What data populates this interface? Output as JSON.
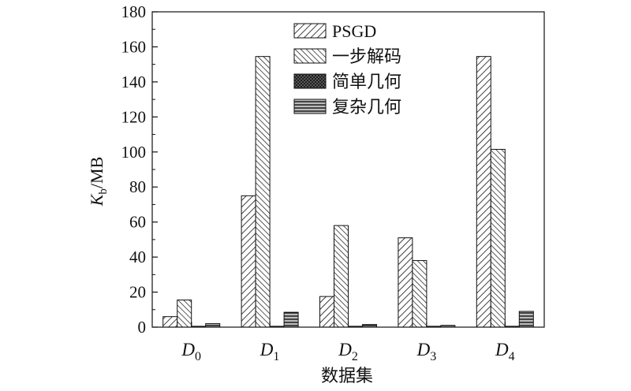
{
  "chart_data": {
    "type": "bar",
    "categories": [
      "D0",
      "D1",
      "D2",
      "D3",
      "D4"
    ],
    "category_labels": [
      {
        "main": "D",
        "sub": "0"
      },
      {
        "main": "D",
        "sub": "1"
      },
      {
        "main": "D",
        "sub": "2"
      },
      {
        "main": "D",
        "sub": "3"
      },
      {
        "main": "D",
        "sub": "4"
      }
    ],
    "series": [
      {
        "name": "PSGD",
        "values": [
          6,
          75,
          17.5,
          51,
          154.5
        ],
        "pattern": "diag-right"
      },
      {
        "name": "一步解码",
        "values": [
          15.5,
          154.5,
          58,
          38,
          101.5
        ],
        "pattern": "diag-left"
      },
      {
        "name": "简单几何",
        "values": [
          0.5,
          0.5,
          0.5,
          0.5,
          0.5
        ],
        "pattern": "crosshatch"
      },
      {
        "name": "复杂几何",
        "values": [
          2,
          8.5,
          1.5,
          1,
          9
        ],
        "pattern": "horizontal"
      }
    ],
    "xlabel": "数据集",
    "ylabel": {
      "main": "K",
      "sub": "b",
      "rest": "/MB"
    },
    "ylim": [
      0,
      180
    ],
    "yticks": [
      0,
      20,
      40,
      60,
      80,
      100,
      120,
      140,
      160,
      180
    ],
    "legend_position": "top-right",
    "grid": false
  }
}
